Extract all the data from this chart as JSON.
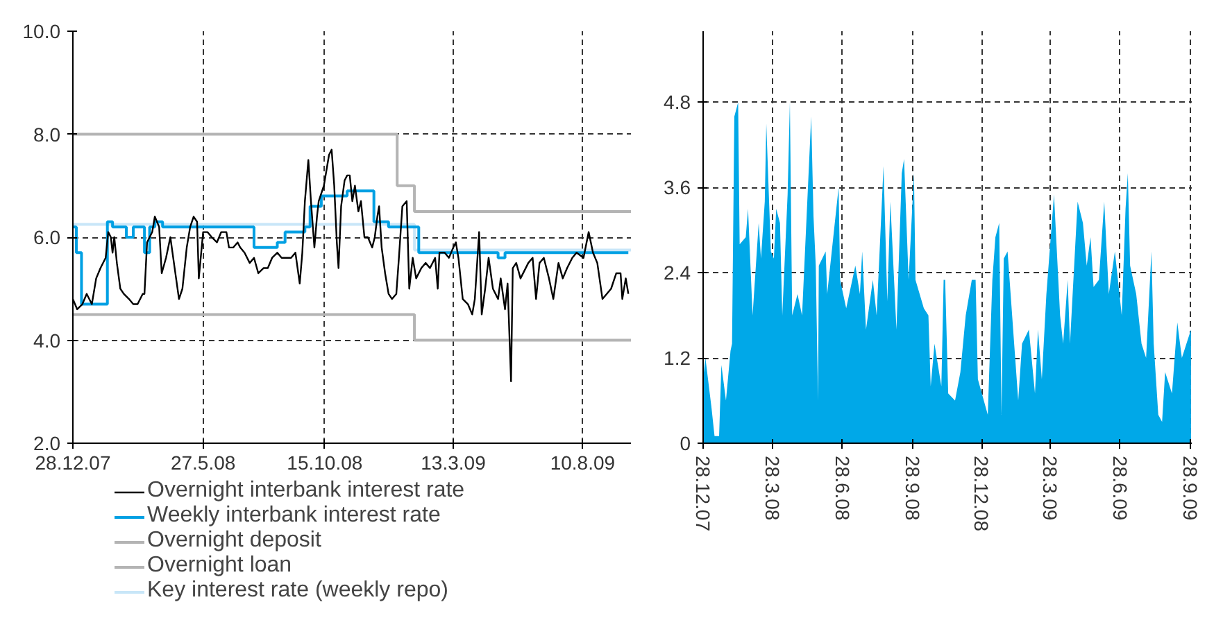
{
  "chart_data": [
    {
      "type": "line",
      "xlim": [
        "2007-12-28",
        "2009-10-05"
      ],
      "ylim": [
        2,
        10
      ],
      "xticks": [
        {
          "value": "2007-12-28",
          "label": "28.12.07"
        },
        {
          "value": "2008-05-27",
          "label": "27.5.08"
        },
        {
          "value": "2008-10-15",
          "label": "15.10.08"
        },
        {
          "value": "2009-03-13",
          "label": "13.3.09"
        },
        {
          "value": "2009-08-10",
          "label": "10.8.09"
        }
      ],
      "yticks": [
        {
          "value": 2,
          "label": "2.0"
        },
        {
          "value": 4,
          "label": "4.0"
        },
        {
          "value": 6,
          "label": "6.0"
        },
        {
          "value": 8,
          "label": "8.0"
        },
        {
          "value": 10,
          "label": "10.0"
        }
      ],
      "grid": true,
      "legend": "bottom",
      "series": [
        {
          "name": "Overnight deposit",
          "type": "step",
          "color": "#b4b4b4",
          "x": [
            "2007-12-28",
            "2009-01-27",
            "2009-10-05"
          ],
          "values": [
            4.5,
            4.0,
            4.0
          ]
        },
        {
          "name": "Overnight loan",
          "type": "step",
          "color": "#b4b4b4",
          "x": [
            "2007-12-28",
            "2009-01-07",
            "2009-01-27",
            "2009-10-05"
          ],
          "values": [
            8.0,
            7.0,
            6.5,
            6.5
          ]
        },
        {
          "name": "Key interest rate (weekly repo)",
          "type": "step",
          "color": "#c8e6f8",
          "x": [
            "2007-12-28",
            "2009-01-27",
            "2009-10-05"
          ],
          "values": [
            6.25,
            5.75,
            5.75
          ]
        },
        {
          "name": "Weekly interbank interest rate",
          "type": "step",
          "color": "#00a0e3",
          "x": [
            "2007-12-28",
            "2008-01-01",
            "2008-01-07",
            "2008-02-06",
            "2008-02-12",
            "2008-02-28",
            "2008-03-07",
            "2008-03-20",
            "2008-03-26",
            "2008-04-01",
            "2008-04-10",
            "2008-07-25",
            "2008-08-21",
            "2008-08-30",
            "2008-09-22",
            "2008-09-28",
            "2008-10-11",
            "2008-11-10",
            "2008-12-11",
            "2008-12-28",
            "2009-02-01",
            "2009-05-04",
            "2009-05-12",
            "2009-10-02"
          ],
          "values": [
            6.2,
            5.7,
            4.7,
            6.3,
            6.2,
            6.0,
            6.2,
            5.7,
            6.2,
            6.3,
            6.2,
            5.8,
            5.9,
            6.1,
            6.2,
            6.6,
            6.8,
            6.9,
            6.3,
            6.2,
            5.7,
            5.6,
            5.7,
            5.7
          ]
        },
        {
          "name": "Overnight interbank interest rate",
          "type": "line",
          "color": "#000000",
          "x": [
            "2007-12-28",
            "2008-01-02",
            "2008-01-08",
            "2008-01-13",
            "2008-01-19",
            "2008-01-24",
            "2008-01-29",
            "2008-02-04",
            "2008-02-07",
            "2008-02-10",
            "2008-02-12",
            "2008-02-14",
            "2008-02-17",
            "2008-02-21",
            "2008-02-25",
            "2008-03-02",
            "2008-03-07",
            "2008-03-12",
            "2008-03-18",
            "2008-03-20",
            "2008-03-23",
            "2008-03-29",
            "2008-04-01",
            "2008-04-06",
            "2008-04-09",
            "2008-04-14",
            "2008-04-19",
            "2008-04-24",
            "2008-04-29",
            "2008-05-03",
            "2008-05-08",
            "2008-05-12",
            "2008-05-16",
            "2008-05-20",
            "2008-05-22",
            "2008-05-27",
            "2008-06-01",
            "2008-06-06",
            "2008-06-12",
            "2008-06-17",
            "2008-06-23",
            "2008-06-26",
            "2008-07-01",
            "2008-07-06",
            "2008-07-09",
            "2008-07-14",
            "2008-07-20",
            "2008-07-25",
            "2008-07-30",
            "2008-08-05",
            "2008-08-10",
            "2008-08-15",
            "2008-08-21",
            "2008-08-26",
            "2008-09-01",
            "2008-09-06",
            "2008-09-11",
            "2008-09-16",
            "2008-09-19",
            "2008-09-22",
            "2008-09-26",
            "2008-09-29",
            "2008-10-03",
            "2008-10-06",
            "2008-10-08",
            "2008-10-14",
            "2008-10-17",
            "2008-10-20",
            "2008-10-23",
            "2008-10-26",
            "2008-10-29",
            "2008-10-31",
            "2008-11-03",
            "2008-11-07",
            "2008-11-10",
            "2008-11-13",
            "2008-11-16",
            "2008-11-19",
            "2008-11-23",
            "2008-11-26",
            "2008-11-30",
            "2008-12-04",
            "2008-12-09",
            "2008-12-12",
            "2008-12-15",
            "2008-12-17",
            "2008-12-20",
            "2008-12-24",
            "2008-12-28",
            "2009-01-01",
            "2009-01-06",
            "2009-01-09",
            "2009-01-13",
            "2009-01-18",
            "2009-01-21",
            "2009-01-25",
            "2009-01-29",
            "2009-02-04",
            "2009-02-09",
            "2009-02-14",
            "2009-02-20",
            "2009-02-23",
            "2009-02-25",
            "2009-03-03",
            "2009-03-08",
            "2009-03-13",
            "2009-03-16",
            "2009-03-19",
            "2009-03-24",
            "2009-03-30",
            "2009-04-04",
            "2009-04-07",
            "2009-04-12",
            "2009-04-15",
            "2009-04-19",
            "2009-04-23",
            "2009-04-28",
            "2009-05-04",
            "2009-05-07",
            "2009-05-12",
            "2009-05-15",
            "2009-05-19",
            "2009-05-21",
            "2009-05-25",
            "2009-05-30",
            "2009-06-08",
            "2009-06-13",
            "2009-06-17",
            "2009-06-21",
            "2009-06-26",
            "2009-07-02",
            "2009-07-07",
            "2009-07-13",
            "2009-07-18",
            "2009-07-23",
            "2009-07-29",
            "2009-08-03",
            "2009-08-11",
            "2009-08-17",
            "2009-08-22",
            "2009-08-27",
            "2009-09-02",
            "2009-09-07",
            "2009-09-12",
            "2009-09-18",
            "2009-09-23",
            "2009-09-25",
            "2009-09-29",
            "2009-10-02"
          ],
          "values": [
            4.8,
            4.6,
            4.7,
            4.9,
            4.7,
            5.2,
            5.4,
            5.6,
            6.1,
            6.0,
            5.7,
            6.0,
            5.5,
            5.0,
            4.9,
            4.8,
            4.7,
            4.7,
            4.9,
            4.9,
            5.9,
            6.1,
            6.4,
            6.2,
            5.3,
            5.6,
            6.0,
            5.4,
            4.8,
            5.0,
            5.8,
            6.2,
            6.4,
            6.3,
            5.2,
            6.1,
            6.1,
            6.0,
            5.9,
            6.1,
            6.1,
            5.8,
            5.8,
            5.9,
            5.8,
            5.7,
            5.5,
            5.6,
            5.3,
            5.4,
            5.4,
            5.6,
            5.7,
            5.6,
            5.6,
            5.6,
            5.7,
            5.1,
            5.7,
            6.7,
            7.5,
            6.7,
            5.8,
            6.4,
            6.7,
            7.0,
            7.3,
            7.6,
            7.7,
            7.0,
            5.9,
            5.4,
            6.6,
            7.1,
            7.2,
            7.2,
            6.7,
            7.0,
            6.5,
            6.7,
            6.0,
            6.0,
            5.8,
            6.0,
            6.4,
            6.6,
            5.8,
            5.3,
            4.9,
            4.8,
            4.9,
            5.6,
            6.6,
            6.7,
            5.0,
            5.6,
            5.2,
            5.4,
            5.5,
            5.4,
            5.6,
            5.0,
            5.7,
            5.7,
            5.6,
            5.8,
            5.9,
            5.6,
            4.8,
            4.7,
            4.5,
            4.8,
            6.1,
            4.5,
            5.0,
            5.6,
            5.0,
            4.8,
            5.2,
            4.6,
            5.1,
            3.2,
            5.4,
            5.5,
            5.2,
            5.5,
            5.6,
            4.8,
            5.5,
            5.6,
            5.2,
            4.8,
            5.5,
            5.2,
            5.4,
            5.6,
            5.7,
            5.6,
            6.1,
            5.7,
            5.5,
            4.8,
            4.9,
            5.0,
            5.3,
            5.3,
            4.8,
            5.2,
            4.9
          ]
        }
      ]
    },
    {
      "type": "area",
      "color": "#00a8e8",
      "xlim": [
        "2007-12-28",
        "2009-09-30"
      ],
      "ylim": [
        0,
        5.8
      ],
      "xticks": [
        {
          "value": "2007-12-28",
          "label": "28.12.07"
        },
        {
          "value": "2008-03-28",
          "label": "28.3.08"
        },
        {
          "value": "2008-06-28",
          "label": "28.6.08"
        },
        {
          "value": "2008-09-28",
          "label": "28.9.08"
        },
        {
          "value": "2008-12-28",
          "label": "28.12.08"
        },
        {
          "value": "2009-03-28",
          "label": "28.3.09"
        },
        {
          "value": "2009-06-28",
          "label": "28.6.09"
        },
        {
          "value": "2009-09-28",
          "label": "28.9.09"
        }
      ],
      "yticks": [
        0,
        1.2,
        2.4,
        3.6,
        4.8
      ],
      "grid": true,
      "x": [
        "2007-12-28",
        "2007-12-31",
        "2008-01-08",
        "2008-01-12",
        "2008-01-18",
        "2008-01-21",
        "2008-01-27",
        "2008-02-02",
        "2008-02-04",
        "2008-02-07",
        "2008-02-12",
        "2008-02-14",
        "2008-02-22",
        "2008-02-25",
        "2008-03-02",
        "2008-03-10",
        "2008-03-13",
        "2008-03-18",
        "2008-03-20",
        "2008-03-26",
        "2008-03-30",
        "2008-04-02",
        "2008-04-07",
        "2008-04-10",
        "2008-04-17",
        "2008-04-20",
        "2008-04-23",
        "2008-04-30",
        "2008-05-06",
        "2008-05-12",
        "2008-05-18",
        "2008-05-21",
        "2008-05-24",
        "2008-05-27",
        "2008-05-28",
        "2008-06-06",
        "2008-06-08",
        "2008-06-16",
        "2008-06-23",
        "2008-06-25",
        "2008-07-03",
        "2008-07-15",
        "2008-07-21",
        "2008-07-24",
        "2008-07-29",
        "2008-08-07",
        "2008-08-12",
        "2008-08-21",
        "2008-08-26",
        "2008-08-30",
        "2008-09-07",
        "2008-09-14",
        "2008-09-17",
        "2008-09-23",
        "2008-09-30",
        "2008-10-02",
        "2008-10-13",
        "2008-10-19",
        "2008-10-22",
        "2008-10-27",
        "2008-11-05",
        "2008-11-08",
        "2008-11-10",
        "2008-11-14",
        "2008-11-23",
        "2008-11-30",
        "2008-12-07",
        "2008-12-15",
        "2008-12-20",
        "2008-12-23",
        "2009-01-05",
        "2009-01-11",
        "2009-01-15",
        "2009-01-20",
        "2009-01-23",
        "2009-01-26",
        "2009-01-31",
        "2009-02-10",
        "2009-02-14",
        "2009-02-19",
        "2009-02-28",
        "2009-03-08",
        "2009-03-12",
        "2009-03-17",
        "2009-03-23",
        "2009-04-02",
        "2009-04-10",
        "2009-04-14",
        "2009-04-20",
        "2009-04-23",
        "2009-05-03",
        "2009-05-10",
        "2009-05-15",
        "2009-05-20",
        "2009-05-24",
        "2009-05-31",
        "2009-06-07",
        "2009-06-13",
        "2009-06-21",
        "2009-06-30",
        "2009-07-05",
        "2009-07-08",
        "2009-07-11",
        "2009-07-19",
        "2009-07-26",
        "2009-08-01",
        "2009-08-08",
        "2009-08-11",
        "2009-08-17",
        "2009-08-22",
        "2009-08-26",
        "2009-09-04",
        "2009-09-11",
        "2009-09-17",
        "2009-09-23",
        "2009-09-29"
      ],
      "values": [
        0.9,
        1.2,
        0.5,
        0.1,
        0.1,
        1.1,
        0.6,
        1.3,
        1.4,
        4.6,
        4.8,
        2.8,
        2.9,
        3.3,
        1.8,
        3.1,
        2.6,
        3.4,
        4.5,
        2.7,
        2.6,
        3.3,
        3.1,
        1.8,
        3.5,
        4.8,
        1.8,
        2.1,
        1.8,
        3.2,
        4.6,
        3.2,
        2.5,
        0.6,
        2.5,
        2.7,
        2.1,
        2.9,
        3.6,
        2.3,
        1.9,
        2.5,
        2.1,
        2.7,
        1.6,
        2.3,
        1.8,
        3.9,
        2.0,
        3.4,
        1.6,
        3.8,
        4.0,
        2.3,
        3.8,
        2.3,
        1.9,
        1.8,
        0.8,
        1.4,
        0.8,
        2.3,
        2.3,
        0.7,
        0.6,
        1.0,
        1.8,
        2.3,
        2.3,
        0.9,
        0.4,
        2.3,
        2.9,
        3.1,
        0.4,
        2.6,
        2.7,
        1.2,
        0.6,
        1.4,
        1.6,
        0.7,
        1.6,
        0.9,
        2.1,
        3.5,
        1.8,
        1.4,
        2.3,
        1.4,
        3.4,
        3.1,
        2.5,
        2.9,
        2.2,
        2.3,
        3.4,
        2.1,
        2.7,
        1.8,
        3.3,
        3.8,
        2.5,
        2.1,
        1.4,
        1.2,
        2.7,
        1.4,
        0.4,
        0.3,
        1.0,
        0.7,
        1.7,
        1.2,
        1.4,
        1.6
      ]
    }
  ]
}
